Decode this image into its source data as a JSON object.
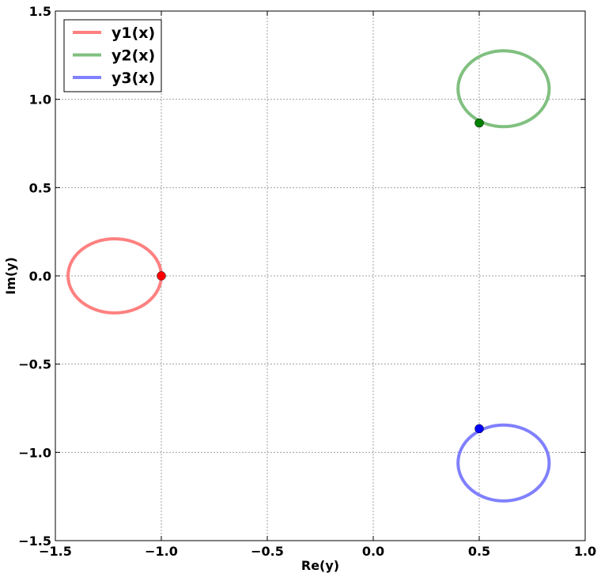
{
  "chart_data": {
    "type": "line",
    "xlabel": "Re(y)",
    "ylabel": "Im(y)",
    "xlim": [
      -1.5,
      1.0
    ],
    "ylim": [
      -1.5,
      1.5
    ],
    "xticks": [
      -1.5,
      -1.0,
      -0.5,
      0.0,
      0.5,
      1.0
    ],
    "yticks": [
      -1.5,
      -1.0,
      -0.5,
      0.0,
      0.5,
      1.0,
      1.5
    ],
    "xtick_labels": [
      "−1.5",
      "−1.0",
      "−0.5",
      "0.0",
      "0.5",
      "1.0"
    ],
    "ytick_labels": [
      "−1.5",
      "−1.0",
      "−0.5",
      "0.0",
      "0.5",
      "1.0",
      "1.5"
    ],
    "grid": true,
    "legend_position": "top-left",
    "series": [
      {
        "name": "y1(x)",
        "color": "#ff8080",
        "marker_color": "#ff0000",
        "shape": "closed-loop",
        "center": [
          -1.22,
          0.0
        ],
        "radius": [
          0.22,
          0.21
        ],
        "marker": [
          -1.0,
          0.0
        ]
      },
      {
        "name": "y2(x)",
        "color": "#80c080",
        "marker_color": "#008000",
        "shape": "closed-loop",
        "center": [
          0.615,
          1.06
        ],
        "radius": [
          0.215,
          0.215
        ],
        "marker": [
          0.5,
          0.866
        ]
      },
      {
        "name": "y3(x)",
        "color": "#8080ff",
        "marker_color": "#0000ff",
        "shape": "closed-loop",
        "center": [
          0.615,
          -1.06
        ],
        "radius": [
          0.215,
          0.215
        ],
        "marker": [
          0.5,
          -0.866
        ]
      }
    ]
  }
}
